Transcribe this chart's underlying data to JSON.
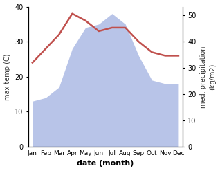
{
  "months": [
    "Jan",
    "Feb",
    "Mar",
    "Apr",
    "May",
    "Jun",
    "Jul",
    "Aug",
    "Sep",
    "Oct",
    "Nov",
    "Dec"
  ],
  "temperature": [
    24,
    28,
    32,
    38,
    36,
    33,
    34,
    34,
    30,
    27,
    26,
    26
  ],
  "rainfall": [
    13,
    14,
    17,
    28,
    34,
    35,
    38,
    35,
    26,
    19,
    18,
    18
  ],
  "temp_color": "#c0504d",
  "rain_fill_color": "#b8c4e8",
  "xlabel": "date (month)",
  "ylabel_left": "max temp (C)",
  "ylabel_right": "med. precipitation\n(kg/m2)",
  "ylim_left": [
    0,
    40
  ],
  "ylim_right": [
    0,
    53.33
  ],
  "yticks_left": [
    0,
    10,
    20,
    30,
    40
  ],
  "yticks_right": [
    0,
    10,
    20,
    30,
    40,
    50
  ],
  "background_color": "#ffffff",
  "temp_linewidth": 1.8
}
